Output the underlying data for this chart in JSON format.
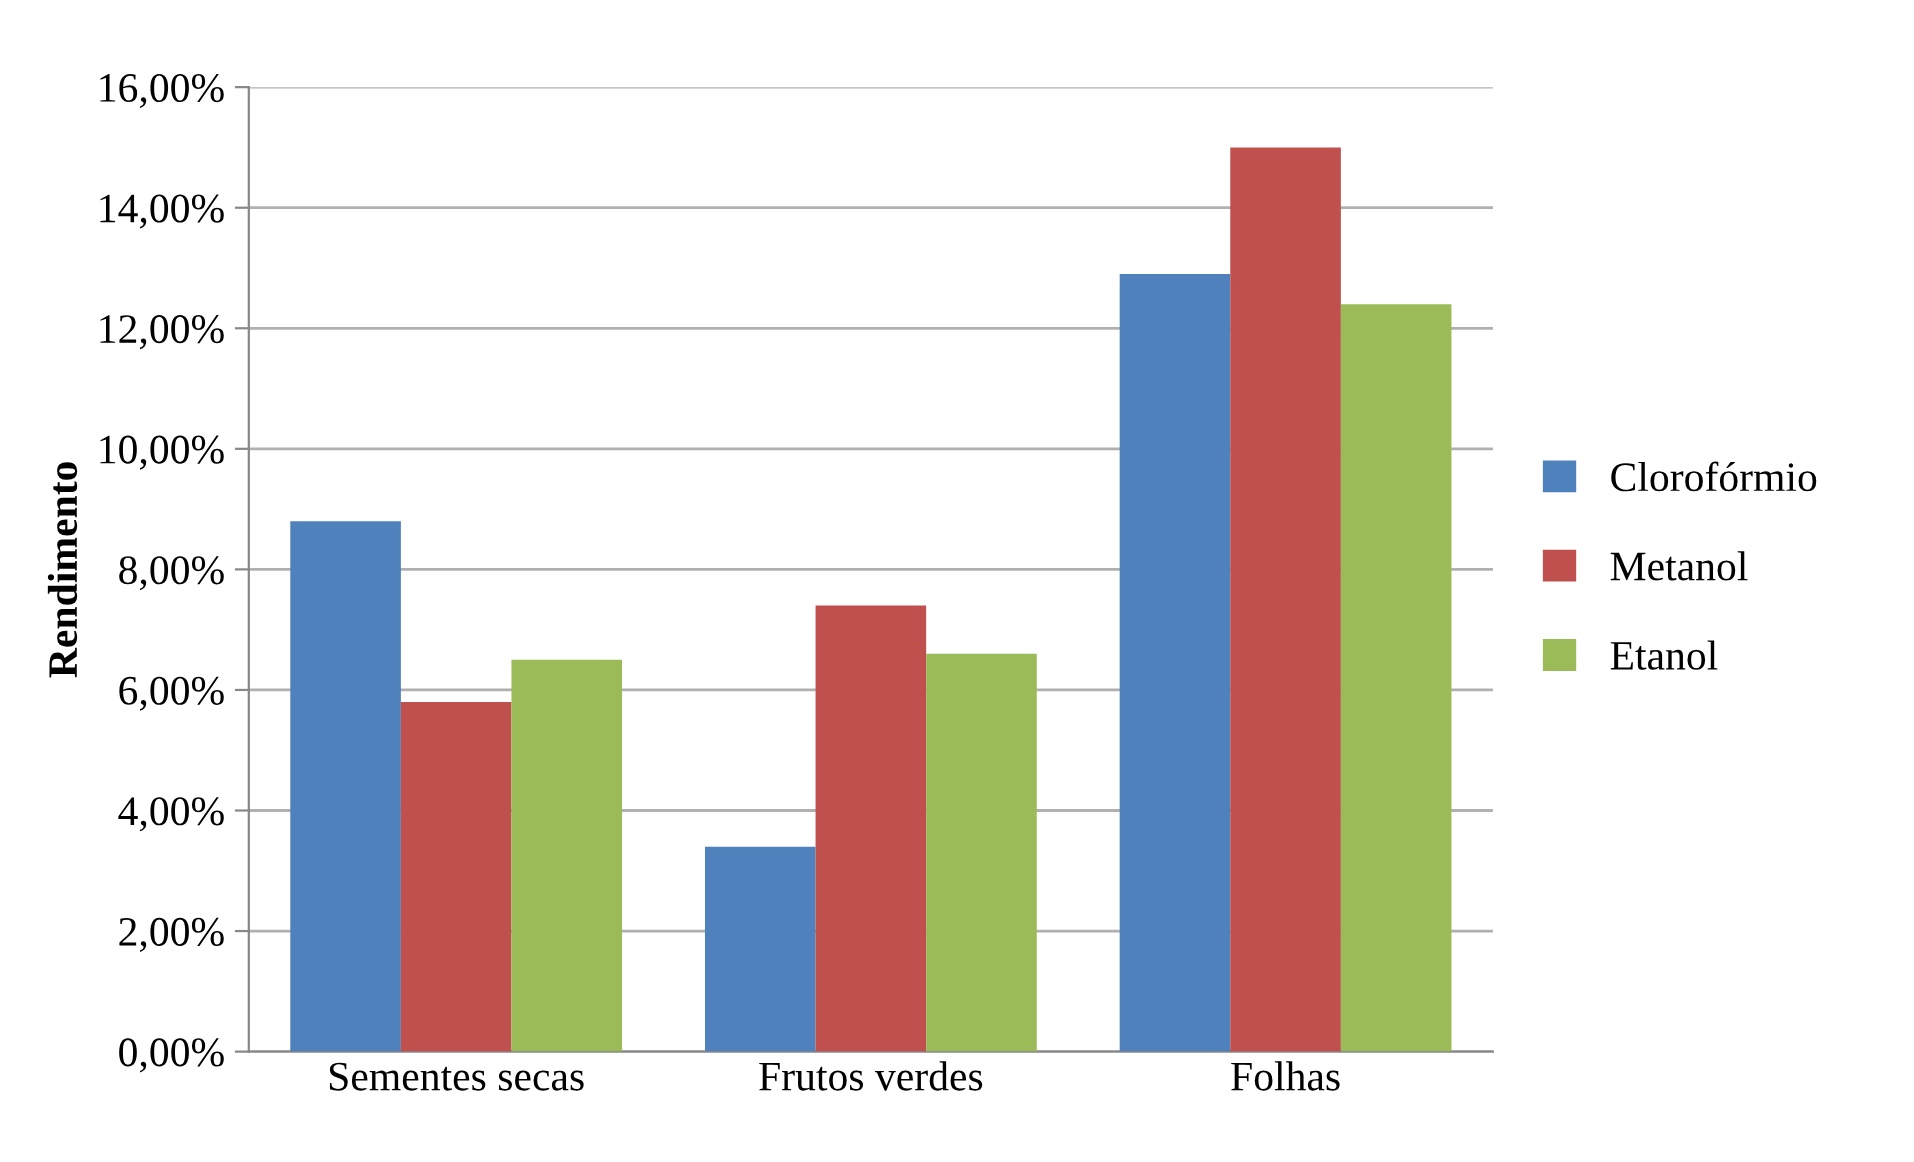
{
  "chart_data": {
    "type": "bar",
    "ylabel": "Rendimento",
    "categories": [
      "Sementes secas",
      "Frutos verdes",
      "Folhas"
    ],
    "series": [
      {
        "name": "Clorofórmio",
        "color": "#4f81bd",
        "values": [
          8.8,
          3.4,
          12.9
        ]
      },
      {
        "name": "Metanol",
        "color": "#c0504d",
        "values": [
          5.8,
          7.4,
          15.0
        ]
      },
      {
        "name": "Etanol",
        "color": "#9bbb59",
        "values": [
          6.5,
          6.6,
          12.4
        ]
      }
    ],
    "ylim": [
      0,
      16
    ],
    "yticks": [
      {
        "value": 0,
        "label": "0,00%"
      },
      {
        "value": 2,
        "label": "2,00%"
      },
      {
        "value": 4,
        "label": "4,00%"
      },
      {
        "value": 6,
        "label": "6,00%"
      },
      {
        "value": 8,
        "label": "8,00%"
      },
      {
        "value": 10,
        "label": "10,00%"
      },
      {
        "value": 12,
        "label": "12,00%"
      },
      {
        "value": 14,
        "label": "14,00%"
      },
      {
        "value": 16,
        "label": "16,00%"
      }
    ],
    "grid": "y",
    "legend": "right"
  }
}
